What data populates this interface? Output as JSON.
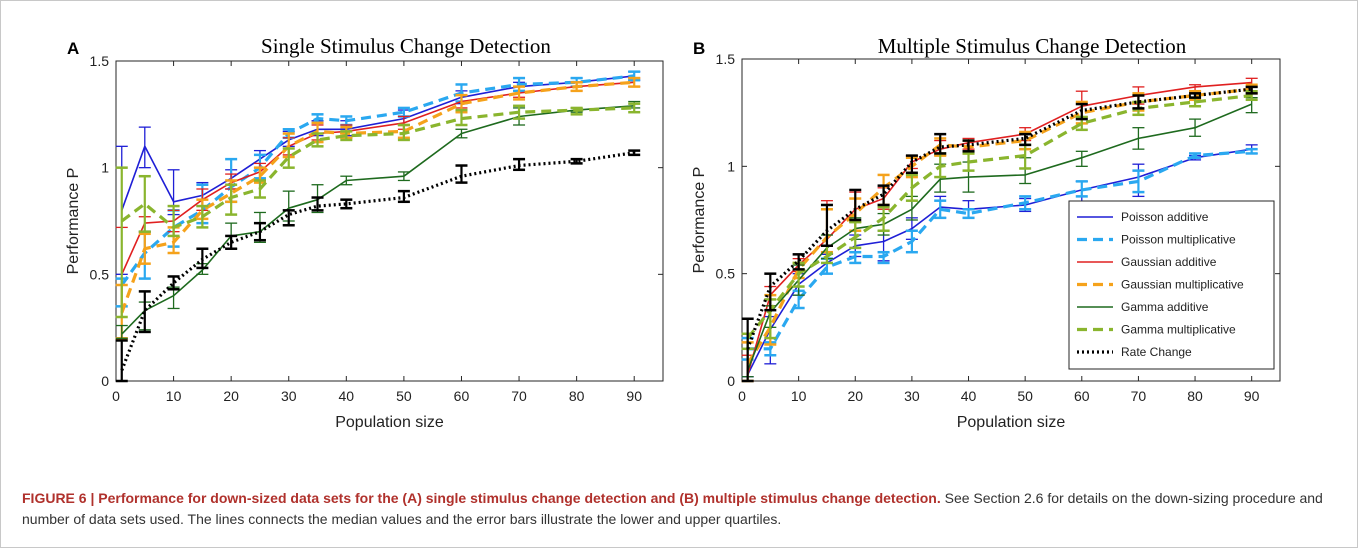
{
  "caption": {
    "bold": "FIGURE 6 | Performance for down-sized data sets for the (A) single stimulus change detection and (B) multiple stimulus change detection.",
    "text": " See Section 2.6 for details on the down-sizing procedure and number of data sets used. The lines connects the median values and the error bars illustrate the lower and upper quartiles."
  },
  "chart_data": [
    {
      "type": "line",
      "panel": "A",
      "title": "Single Stimulus Change Detection",
      "xlabel": "Population size",
      "ylabel": "Performance P",
      "xlim": [
        0,
        95
      ],
      "ylim": [
        0,
        1.5
      ],
      "xticks": [
        0,
        10,
        20,
        30,
        40,
        50,
        60,
        70,
        80,
        90
      ],
      "yticks": [
        0,
        0.5,
        1,
        1.5
      ],
      "x": [
        1,
        5,
        10,
        15,
        20,
        25,
        30,
        35,
        40,
        50,
        60,
        70,
        80,
        90
      ],
      "series": [
        {
          "name": "Poisson additive",
          "color": "#1f1fd6",
          "dash": "solid",
          "values": [
            0.8,
            1.1,
            0.84,
            0.87,
            0.95,
            1.04,
            1.13,
            1.18,
            1.18,
            1.23,
            1.33,
            1.38,
            1.4,
            1.43
          ],
          "lower": [
            0.5,
            1.0,
            0.78,
            0.82,
            0.9,
            1.0,
            1.1,
            1.15,
            1.15,
            1.2,
            1.3,
            1.36,
            1.38,
            1.41
          ],
          "upper": [
            1.1,
            1.19,
            0.99,
            0.93,
            0.99,
            1.08,
            1.17,
            1.22,
            1.22,
            1.27,
            1.36,
            1.4,
            1.42,
            1.45
          ]
        },
        {
          "name": "Poisson multiplicative",
          "color": "#2aa8f0",
          "dash": "dashed",
          "values": [
            0.45,
            0.6,
            0.72,
            0.8,
            0.91,
            1.0,
            1.16,
            1.23,
            1.22,
            1.26,
            1.35,
            1.39,
            1.4,
            1.43
          ],
          "lower": [
            0.35,
            0.48,
            0.63,
            0.74,
            0.84,
            0.95,
            1.14,
            1.21,
            1.2,
            1.24,
            1.31,
            1.36,
            1.38,
            1.41
          ],
          "upper": [
            0.48,
            0.7,
            0.8,
            0.92,
            1.04,
            1.06,
            1.18,
            1.25,
            1.24,
            1.28,
            1.39,
            1.42,
            1.42,
            1.45
          ]
        },
        {
          "name": "Gaussian additive",
          "color": "#e02020",
          "dash": "solid",
          "values": [
            0.5,
            0.74,
            0.75,
            0.85,
            0.93,
            0.98,
            1.1,
            1.16,
            1.17,
            1.21,
            1.31,
            1.35,
            1.38,
            1.4
          ],
          "lower": [
            0.2,
            0.7,
            0.7,
            0.8,
            0.9,
            0.94,
            1.06,
            1.13,
            1.14,
            1.18,
            1.28,
            1.33,
            1.36,
            1.38
          ],
          "upper": [
            0.72,
            0.77,
            0.8,
            0.9,
            0.97,
            1.02,
            1.14,
            1.2,
            1.2,
            1.24,
            1.34,
            1.38,
            1.4,
            1.42
          ]
        },
        {
          "name": "Gaussian multiplicative",
          "color": "#f5a21b",
          "dash": "dashed",
          "values": [
            0.32,
            0.62,
            0.65,
            0.8,
            0.88,
            0.96,
            1.1,
            1.17,
            1.16,
            1.17,
            1.3,
            1.35,
            1.38,
            1.4
          ],
          "lower": [
            0.2,
            0.55,
            0.6,
            0.76,
            0.84,
            0.93,
            1.05,
            1.12,
            1.14,
            1.14,
            1.26,
            1.32,
            1.36,
            1.38
          ],
          "upper": [
            0.45,
            0.69,
            0.72,
            0.85,
            0.94,
            1.0,
            1.16,
            1.21,
            1.19,
            1.2,
            1.34,
            1.38,
            1.4,
            1.42
          ]
        },
        {
          "name": "Gamma additive",
          "color": "#1e6a1e",
          "dash": "solid",
          "values": [
            0.22,
            0.33,
            0.4,
            0.52,
            0.68,
            0.7,
            0.81,
            0.85,
            0.94,
            0.96,
            1.16,
            1.24,
            1.27,
            1.29
          ],
          "lower": [
            0.2,
            0.24,
            0.34,
            0.5,
            0.62,
            0.65,
            0.75,
            0.79,
            0.92,
            0.94,
            1.14,
            1.2,
            1.26,
            1.28
          ],
          "upper": [
            0.26,
            0.37,
            0.44,
            0.55,
            0.74,
            0.79,
            0.89,
            0.92,
            0.96,
            0.98,
            1.18,
            1.28,
            1.28,
            1.31
          ]
        },
        {
          "name": "Gamma multiplicative",
          "color": "#8ab52e",
          "dash": "dashed",
          "values": [
            0.75,
            0.83,
            0.72,
            0.77,
            0.86,
            0.9,
            1.05,
            1.13,
            1.15,
            1.16,
            1.23,
            1.26,
            1.27,
            1.28
          ],
          "lower": [
            0.3,
            0.7,
            0.68,
            0.72,
            0.78,
            0.86,
            1.0,
            1.1,
            1.13,
            1.13,
            1.2,
            1.23,
            1.25,
            1.26
          ],
          "upper": [
            1.0,
            0.96,
            0.82,
            0.82,
            0.92,
            0.94,
            1.09,
            1.16,
            1.17,
            1.2,
            1.27,
            1.29,
            1.28,
            1.3
          ]
        },
        {
          "name": "Rate Change",
          "color": "#000000",
          "dash": "dotted",
          "values": [
            0.05,
            0.33,
            0.46,
            0.57,
            0.65,
            0.7,
            0.78,
            0.82,
            0.83,
            0.86,
            0.96,
            1.01,
            1.03,
            1.07
          ],
          "lower": [
            0.0,
            0.23,
            0.43,
            0.53,
            0.62,
            0.66,
            0.73,
            0.8,
            0.81,
            0.84,
            0.93,
            0.99,
            1.02,
            1.06
          ],
          "upper": [
            0.19,
            0.42,
            0.49,
            0.62,
            0.68,
            0.74,
            0.8,
            0.86,
            0.85,
            0.89,
            1.01,
            1.04,
            1.04,
            1.08
          ]
        }
      ]
    },
    {
      "type": "line",
      "panel": "B",
      "title": "Multiple Stimulus Change Detection",
      "xlabel": "Population size",
      "ylabel": "Performance P",
      "xlim": [
        0,
        95
      ],
      "ylim": [
        0,
        1.5
      ],
      "xticks": [
        0,
        10,
        20,
        30,
        40,
        50,
        60,
        70,
        80,
        90
      ],
      "yticks": [
        0,
        0.5,
        1,
        1.5
      ],
      "legend": "lower-right",
      "x": [
        1,
        5,
        10,
        15,
        20,
        25,
        30,
        35,
        40,
        50,
        60,
        70,
        80,
        90
      ],
      "series": [
        {
          "name": "Poisson additive",
          "color": "#1f1fd6",
          "dash": "solid",
          "values": [
            0.03,
            0.24,
            0.45,
            0.55,
            0.63,
            0.65,
            0.71,
            0.81,
            0.8,
            0.82,
            0.89,
            0.95,
            1.04,
            1.08
          ],
          "lower": [
            0.02,
            0.08,
            0.4,
            0.5,
            0.58,
            0.56,
            0.66,
            0.76,
            0.76,
            0.79,
            0.82,
            0.86,
            1.03,
            1.06
          ],
          "upper": [
            0.2,
            0.3,
            0.5,
            0.59,
            0.68,
            0.7,
            0.76,
            0.86,
            0.84,
            0.85,
            0.93,
            1.01,
            1.05,
            1.1
          ]
        },
        {
          "name": "Poisson multiplicative",
          "color": "#2aa8f0",
          "dash": "dashed",
          "values": [
            0.15,
            0.15,
            0.38,
            0.53,
            0.58,
            0.58,
            0.65,
            0.8,
            0.78,
            0.83,
            0.89,
            0.93,
            1.05,
            1.07
          ],
          "lower": [
            0.1,
            0.12,
            0.34,
            0.5,
            0.55,
            0.55,
            0.6,
            0.76,
            0.76,
            0.8,
            0.86,
            0.88,
            1.04,
            1.06
          ],
          "upper": [
            0.2,
            0.18,
            0.42,
            0.57,
            0.6,
            0.6,
            0.7,
            0.84,
            0.8,
            0.86,
            0.93,
            0.98,
            1.06,
            1.08
          ]
        },
        {
          "name": "Gaussian additive",
          "color": "#e02020",
          "dash": "solid",
          "values": [
            0.03,
            0.4,
            0.54,
            0.66,
            0.8,
            0.85,
            1.02,
            1.08,
            1.11,
            1.15,
            1.28,
            1.33,
            1.37,
            1.39
          ],
          "lower": [
            0.0,
            0.35,
            0.51,
            0.6,
            0.74,
            0.8,
            0.99,
            1.05,
            1.08,
            1.12,
            1.23,
            1.29,
            1.35,
            1.37
          ],
          "upper": [
            0.12,
            0.44,
            0.57,
            0.84,
            0.88,
            0.9,
            1.05,
            1.12,
            1.13,
            1.18,
            1.35,
            1.37,
            1.38,
            1.41
          ]
        },
        {
          "name": "Gaussian multiplicative",
          "color": "#f5a21b",
          "dash": "dashed",
          "values": [
            0.08,
            0.25,
            0.52,
            0.67,
            0.78,
            0.9,
            1.0,
            1.1,
            1.09,
            1.12,
            1.25,
            1.3,
            1.33,
            1.36
          ],
          "lower": [
            0.0,
            0.17,
            0.48,
            0.6,
            0.7,
            0.82,
            0.95,
            1.05,
            1.06,
            1.08,
            1.2,
            1.26,
            1.31,
            1.34
          ],
          "upper": [
            0.18,
            0.4,
            0.55,
            0.8,
            0.85,
            0.96,
            1.04,
            1.13,
            1.12,
            1.16,
            1.3,
            1.34,
            1.35,
            1.38
          ]
        },
        {
          "name": "Gamma additive",
          "color": "#1e6a1e",
          "dash": "solid",
          "values": [
            0.05,
            0.32,
            0.47,
            0.62,
            0.71,
            0.73,
            0.8,
            0.94,
            0.95,
            0.96,
            1.04,
            1.13,
            1.18,
            1.29
          ],
          "lower": [
            0.02,
            0.25,
            0.4,
            0.57,
            0.66,
            0.68,
            0.75,
            0.88,
            0.88,
            0.92,
            1.0,
            1.08,
            1.14,
            1.25
          ],
          "upper": [
            0.15,
            0.35,
            0.54,
            0.68,
            0.76,
            0.78,
            0.86,
            1.01,
            1.02,
            1.04,
            1.07,
            1.18,
            1.22,
            1.32
          ]
        },
        {
          "name": "Gamma multiplicative",
          "color": "#8ab52e",
          "dash": "dashed",
          "values": [
            0.2,
            0.33,
            0.5,
            0.58,
            0.67,
            0.76,
            0.9,
            1.0,
            1.02,
            1.05,
            1.2,
            1.27,
            1.3,
            1.33
          ],
          "lower": [
            0.15,
            0.2,
            0.44,
            0.55,
            0.62,
            0.7,
            0.84,
            0.95,
            0.98,
            0.99,
            1.17,
            1.24,
            1.28,
            1.31
          ],
          "upper": [
            0.22,
            0.38,
            0.55,
            0.63,
            0.74,
            0.81,
            0.96,
            1.06,
            1.06,
            1.1,
            1.23,
            1.3,
            1.32,
            1.35
          ]
        },
        {
          "name": "Rate Change",
          "color": "#000000",
          "dash": "dotted",
          "values": [
            0.15,
            0.44,
            0.56,
            0.7,
            0.8,
            0.87,
            1.02,
            1.09,
            1.1,
            1.13,
            1.26,
            1.3,
            1.33,
            1.36
          ],
          "lower": [
            0.0,
            0.33,
            0.52,
            0.63,
            0.75,
            0.82,
            0.97,
            1.06,
            1.07,
            1.1,
            1.22,
            1.27,
            1.32,
            1.34
          ],
          "upper": [
            0.29,
            0.5,
            0.59,
            0.82,
            0.89,
            0.91,
            1.05,
            1.15,
            1.12,
            1.15,
            1.29,
            1.33,
            1.34,
            1.37
          ]
        }
      ]
    }
  ]
}
